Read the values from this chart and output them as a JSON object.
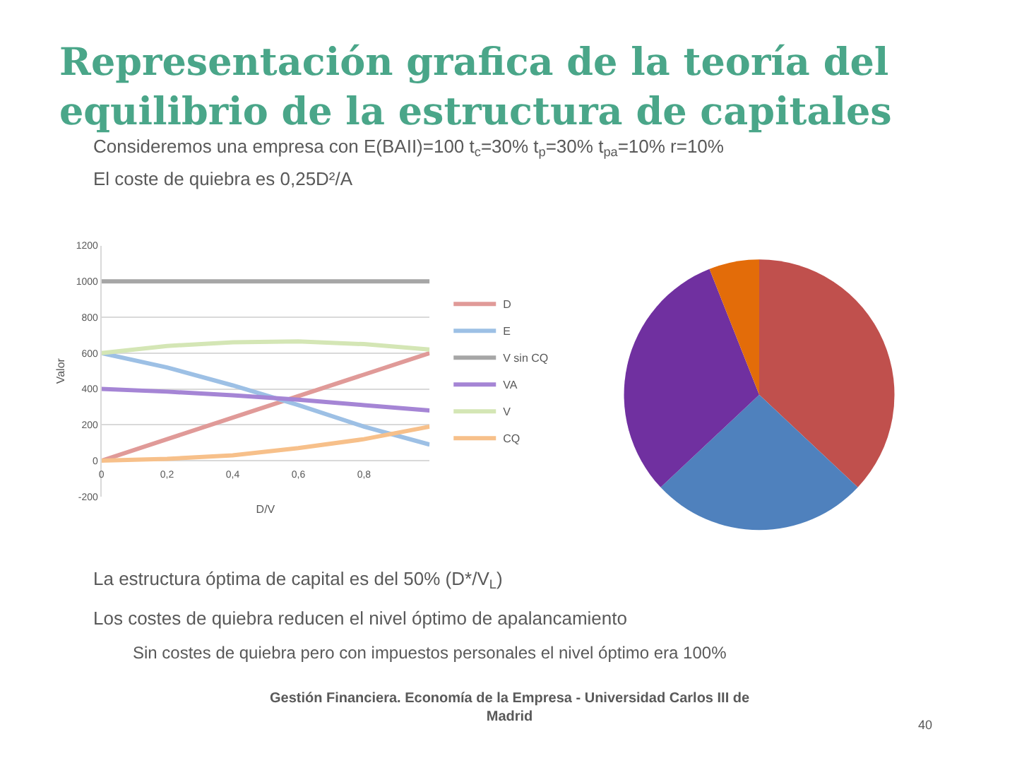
{
  "chart_data": [
    {
      "type": "line",
      "title": "Representación grafica de la teoría del\nequilibrio de la estructura de capitales",
      "annotations": [
        "Consideremos una empresa con E(BAII)=100 t$_{c}$=30% t$_{p}$=30% t$_{pa}$=10% r=10%",
        "El coste de quiebra es 0,25D²/A",
        "La estructura óptima de capital es del 50% (D*/V$_{L}$)",
        "Los costes de quiebra reducen el nivel óptimo de apalancamiento",
        "Sin costes de quiebra pero con impuestos personales el nivel óptimo era 100%",
        "Gestión Financiera. Economía de la Empresa - Universidad Carlos III de\nMadrid",
        "40"
      ],
      "xlabel": "D/V",
      "ylabel": "Valor",
      "x": [
        0,
        0.2,
        0.4,
        0.6,
        0.8,
        1
      ],
      "series": [
        {
          "name": "D",
          "color": "#e09a98",
          "values": [
            0,
            120,
            240,
            360,
            480,
            600
          ]
        },
        {
          "name": "E",
          "color": "#9dc0e5",
          "values": [
            600,
            520,
            420,
            310,
            190,
            90
          ]
        },
        {
          "name": "V sin CQ",
          "color": "#a6a6a6",
          "values": [
            1000,
            1000,
            1000,
            1000,
            1000,
            1000
          ]
        },
        {
          "name": "VA",
          "color": "#a585d5",
          "values": [
            400,
            385,
            365,
            340,
            310,
            280
          ]
        },
        {
          "name": "V",
          "color": "#d4e6b5",
          "values": [
            600,
            640,
            660,
            665,
            650,
            620
          ]
        },
        {
          "name": "CQ",
          "color": "#f7c08a",
          "values": [
            0,
            10,
            30,
            70,
            120,
            190
          ]
        }
      ],
      "xlim": [
        0,
        1
      ],
      "xticks": [
        0,
        {
          "value": 0.2,
          "label": "0,2"
        },
        {
          "value": 0.4,
          "label": "0,4"
        },
        {
          "value": 0.6,
          "label": "0,6"
        },
        {
          "value": 0.8,
          "label": "0,8"
        }
      ],
      "ylim": [
        -200,
        1200
      ],
      "yticks": [
        -200,
        0,
        200,
        400,
        600,
        800,
        1000,
        1200
      ],
      "grid": "y",
      "legend": "right"
    },
    {
      "type": "pie",
      "categories": [
        null,
        null,
        null,
        null
      ],
      "values": [
        37,
        26,
        31,
        6
      ],
      "colors": [
        "#c0504d",
        "#4f81bd",
        "#7030a0",
        "#e36c09"
      ]
    }
  ]
}
